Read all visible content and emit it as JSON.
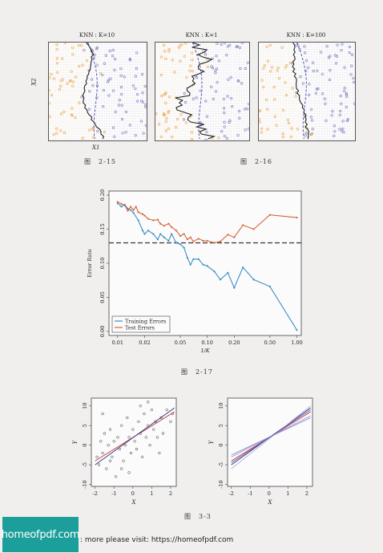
{
  "knn_panels": {
    "title_k10": "KNN : K=10",
    "title_k1": "KNN : K=1",
    "title_k100": "KNN : K=100",
    "y_axis_label": "X2",
    "x_axis_label": "X1"
  },
  "captions": {
    "fig_2_15": "图　2-15",
    "fig_2_16": "图　2-16",
    "fig_2_17": "图　2-17",
    "fig_3_3": "图　3-3"
  },
  "error_chart": {
    "xlabel": "1/K",
    "ylabel": "Error Rate",
    "legend_training": "Training Errors",
    "legend_test": "Test Errors",
    "y_ticks": [
      "0.00",
      "0.05",
      "0.10",
      "0.15",
      "0.20"
    ],
    "x_ticks": [
      "0.01",
      "0.02",
      "0.05",
      "0.10",
      "0.20",
      "0.50",
      "1.00"
    ]
  },
  "regression_plots": {
    "ylabel": "Y",
    "xlabel": "X",
    "y_ticks": [
      "-10",
      "-5",
      "0",
      "5",
      "10"
    ],
    "x_ticks": [
      "-2",
      "-1",
      "0",
      "1",
      "2"
    ]
  },
  "footer": {
    "logo_text": "homeofpdf.com",
    "visit_text": ": more please visit: https://homeofpdf.com"
  },
  "colors": {
    "training": "#3d8fc6",
    "test": "#d8653a",
    "bayes": "#555555",
    "orange_points": "#e8a550",
    "blue_points": "#7a78c0",
    "logo_bg": "#1c9f9a"
  },
  "chart_data": [
    {
      "type": "line",
      "x_scale": "log",
      "xlabel": "1/K",
      "ylabel": "Error Rate",
      "ylim": [
        0,
        0.2
      ],
      "xlim": [
        0.01,
        1.0
      ],
      "legend_placement": "bottom-left",
      "series": [
        {
          "name": "Training Errors",
          "x": [
            0.01,
            0.011,
            0.012,
            0.013,
            0.014,
            0.015,
            0.017,
            0.019,
            0.02,
            0.022,
            0.025,
            0.028,
            0.03,
            0.033,
            0.037,
            0.04,
            0.045,
            0.05,
            0.055,
            0.06,
            0.065,
            0.07,
            0.08,
            0.09,
            0.1,
            0.12,
            0.14,
            0.17,
            0.2,
            0.25,
            0.33,
            0.5,
            1.0
          ],
          "values": [
            0.188,
            0.183,
            0.186,
            0.18,
            0.178,
            0.174,
            0.163,
            0.148,
            0.143,
            0.148,
            0.143,
            0.135,
            0.143,
            0.138,
            0.133,
            0.143,
            0.13,
            0.128,
            0.123,
            0.108,
            0.098,
            0.106,
            0.106,
            0.098,
            0.096,
            0.088,
            0.076,
            0.086,
            0.064,
            0.094,
            0.076,
            0.066,
            0.002
          ]
        },
        {
          "name": "Test Errors",
          "x": [
            0.01,
            0.011,
            0.012,
            0.013,
            0.014,
            0.015,
            0.016,
            0.017,
            0.019,
            0.02,
            0.022,
            0.025,
            0.028,
            0.03,
            0.033,
            0.037,
            0.04,
            0.045,
            0.05,
            0.055,
            0.06,
            0.065,
            0.07,
            0.08,
            0.09,
            0.1,
            0.12,
            0.14,
            0.17,
            0.2,
            0.25,
            0.33,
            0.5,
            1.0
          ],
          "values": [
            0.19,
            0.187,
            0.185,
            0.177,
            0.183,
            0.178,
            0.183,
            0.175,
            0.172,
            0.17,
            0.165,
            0.163,
            0.164,
            0.158,
            0.155,
            0.158,
            0.153,
            0.148,
            0.14,
            0.143,
            0.135,
            0.138,
            0.132,
            0.136,
            0.133,
            0.133,
            0.13,
            0.132,
            0.142,
            0.138,
            0.156,
            0.15,
            0.171,
            0.167
          ]
        }
      ],
      "reference_line": 0.13
    },
    {
      "type": "scatter",
      "xlabel": "X",
      "ylabel": "Y",
      "xlim": [
        -2.2,
        2.3
      ],
      "ylim": [
        -10.5,
        12
      ],
      "points": [
        [
          -1.9,
          -3
        ],
        [
          -1.8,
          -5
        ],
        [
          -1.7,
          1
        ],
        [
          -1.6,
          -2
        ],
        [
          -1.5,
          3
        ],
        [
          -1.4,
          -6
        ],
        [
          -1.3,
          0
        ],
        [
          -1.2,
          4
        ],
        [
          -1.1,
          -3
        ],
        [
          -1.0,
          1
        ],
        [
          -0.9,
          -8
        ],
        [
          -0.8,
          2
        ],
        [
          -0.7,
          -1
        ],
        [
          -0.6,
          5
        ],
        [
          -0.5,
          -4
        ],
        [
          -0.4,
          0
        ],
        [
          -0.3,
          7
        ],
        [
          -0.2,
          2
        ],
        [
          -0.1,
          -2
        ],
        [
          0.0,
          4
        ],
        [
          0.1,
          1
        ],
        [
          0.2,
          -1
        ],
        [
          0.3,
          6
        ],
        [
          0.4,
          3
        ],
        [
          0.5,
          -3
        ],
        [
          0.6,
          8
        ],
        [
          0.7,
          2
        ],
        [
          0.8,
          5
        ],
        [
          0.9,
          0
        ],
        [
          1.0,
          9
        ],
        [
          1.1,
          4
        ],
        [
          1.2,
          6
        ],
        [
          1.3,
          2
        ],
        [
          1.5,
          7
        ],
        [
          1.6,
          3
        ],
        [
          1.8,
          9
        ],
        [
          2.0,
          6
        ],
        [
          2.1,
          8
        ],
        [
          -1.6,
          8
        ],
        [
          -0.2,
          -7
        ],
        [
          0.4,
          10
        ],
        [
          1.4,
          -2
        ],
        [
          -1.2,
          -4
        ],
        [
          0.8,
          11
        ],
        [
          -0.6,
          -6
        ]
      ],
      "lines": [
        {
          "x": [
            -2,
            2.2
          ],
          "y": [
            -4,
            8.5
          ]
        },
        {
          "x": [
            -2,
            2.2
          ],
          "y": [
            -5,
            9.5
          ]
        }
      ]
    },
    {
      "type": "line",
      "xlabel": "X",
      "ylabel": "Y",
      "xlim": [
        -2.2,
        2.3
      ],
      "ylim": [
        -10.5,
        12
      ],
      "lines": [
        {
          "x": [
            -2,
            2.2
          ],
          "y": [
            -4,
            8.5
          ]
        },
        {
          "x": [
            -2,
            2.2
          ],
          "y": [
            -5,
            9.5
          ]
        },
        {
          "x": [
            -2,
            2.2
          ],
          "y": [
            -3,
            7.5
          ]
        },
        {
          "x": [
            -2,
            2.2
          ],
          "y": [
            -6,
            10
          ]
        },
        {
          "x": [
            -2,
            2.2
          ],
          "y": [
            -2.5,
            7
          ]
        },
        {
          "x": [
            -2,
            2.2
          ],
          "y": [
            -4.5,
            9
          ]
        }
      ]
    }
  ]
}
